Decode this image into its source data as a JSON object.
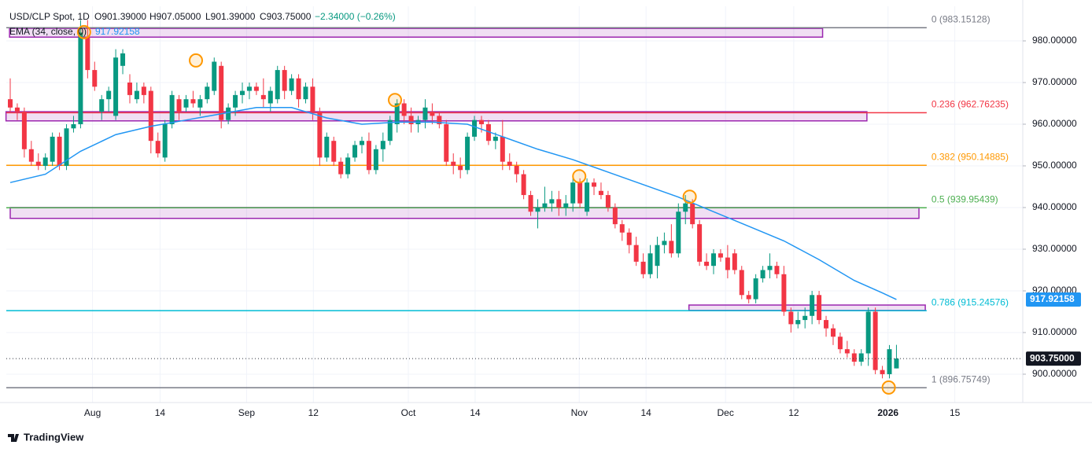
{
  "header": {
    "open": "O901.39000",
    "high": "H907.05000",
    "low": "L901.39000",
    "close": "C903.75000",
    "change": "−2.34000 (−0.26%)"
  },
  "chart_data": {
    "type": "candlestick",
    "title": "USD/CLP Spot, 1D",
    "up_color": "#089981",
    "down_color": "#f23645",
    "open": [
      966,
      964,
      963,
      954,
      951,
      950,
      951,
      957,
      950,
      959,
      960,
      981,
      973,
      963,
      966,
      962,
      974,
      970,
      966,
      969,
      968,
      956,
      952,
      960,
      966,
      964,
      966,
      964,
      966,
      968,
      974,
      961,
      964,
      967,
      968,
      969,
      967,
      965,
      966,
      973,
      968,
      971,
      966,
      969,
      963,
      952,
      956,
      951,
      948,
      952,
      955,
      956,
      949,
      954,
      956,
      960,
      965,
      962,
      960,
      961,
      963,
      962,
      960,
      951,
      950,
      949,
      957,
      961,
      960,
      956,
      957,
      951,
      950,
      948,
      943,
      939,
      940,
      941,
      942,
      940,
      941,
      946,
      939,
      946,
      944,
      943,
      940,
      936,
      934,
      931,
      927,
      924,
      926,
      931,
      932,
      929,
      939,
      941,
      936,
      927,
      926,
      929,
      928,
      929,
      925,
      919,
      918,
      923,
      925,
      926,
      924,
      915,
      912,
      913,
      914,
      919,
      913,
      911,
      909,
      906,
      905,
      903,
      905,
      915,
      901,
      900,
      901.39
    ],
    "high": [
      971,
      965,
      964,
      956,
      953,
      953,
      958,
      958,
      960,
      962,
      985,
      985,
      975,
      967,
      969,
      978,
      978,
      972,
      970,
      970,
      969,
      958,
      961,
      968,
      967,
      967,
      968,
      967,
      970,
      976,
      975,
      965,
      968,
      970,
      970,
      970,
      971,
      969,
      974,
      974,
      972,
      972,
      970,
      971,
      964,
      958,
      957,
      952,
      953,
      956,
      957,
      958,
      955,
      958,
      962,
      966,
      966,
      964,
      962,
      966,
      965,
      963,
      961,
      953,
      952,
      958,
      962,
      962,
      961,
      958,
      961,
      953,
      951,
      949,
      944,
      942,
      945,
      944,
      944,
      943,
      948,
      947,
      947,
      947,
      946,
      944,
      941,
      937,
      935,
      933,
      929,
      931,
      933,
      934,
      936,
      941,
      943,
      942,
      937,
      929,
      930,
      930,
      931,
      930,
      926,
      920,
      924,
      926,
      929,
      927,
      926,
      916,
      915,
      916,
      920,
      920,
      914,
      912,
      910,
      908,
      906,
      906,
      916,
      916,
      902,
      907,
      907.05
    ],
    "low": [
      963,
      961,
      952,
      950,
      949,
      949,
      950,
      949,
      949,
      958,
      959,
      971,
      968,
      961,
      963,
      961,
      972,
      965,
      965,
      965,
      953,
      952,
      951,
      959,
      961,
      963,
      964,
      962,
      965,
      967,
      959,
      960,
      962,
      965,
      966,
      967,
      964,
      963,
      965,
      966,
      967,
      964,
      965,
      961,
      950,
      951,
      950,
      947,
      947,
      951,
      953,
      948,
      948,
      951,
      955,
      958,
      960,
      958,
      958,
      959,
      960,
      959,
      950,
      948,
      947,
      948,
      956,
      958,
      955,
      954,
      949,
      949,
      946,
      942,
      938,
      935,
      939,
      939,
      938,
      938,
      939,
      940,
      938,
      943,
      942,
      939,
      935,
      932,
      929,
      926,
      923,
      923,
      923,
      929,
      928,
      928,
      936,
      935,
      926,
      925,
      924,
      927,
      923,
      924,
      918,
      917,
      917,
      922,
      923,
      923,
      914,
      910,
      911,
      911,
      912,
      912,
      909,
      907,
      905,
      904,
      902,
      902,
      902,
      900,
      899,
      899,
      901.39
    ],
    "close": [
      964,
      963,
      954,
      951,
      950,
      952,
      957,
      950,
      959,
      960,
      982,
      973,
      969,
      966,
      968,
      976,
      977,
      967,
      968,
      967,
      956,
      953,
      960,
      967,
      963,
      966,
      965,
      966,
      969,
      975,
      961,
      964,
      967,
      968,
      969,
      968,
      966,
      968,
      973,
      968,
      971,
      966,
      969,
      963,
      952,
      957,
      951,
      948,
      952,
      955,
      956,
      949,
      954,
      956,
      961,
      965,
      962,
      960,
      961,
      964,
      962,
      960,
      951,
      950,
      949,
      957,
      961,
      960,
      956,
      957,
      951,
      950,
      948,
      943,
      939,
      940,
      941,
      942,
      940,
      941,
      946,
      941,
      946,
      945,
      943,
      940,
      936,
      934,
      931,
      927,
      924,
      929,
      931,
      932,
      929,
      939,
      941,
      936,
      927,
      926,
      929,
      928,
      925,
      925,
      919,
      918,
      923,
      925,
      926,
      924,
      915,
      912,
      913,
      914,
      919,
      913,
      911,
      909,
      906,
      905,
      903,
      905,
      915,
      901,
      900,
      906,
      903.75
    ],
    "ema": {
      "name": "EMA (34, close, 0)",
      "color": "#2196f3",
      "value_label": "917.92158",
      "x": [
        0,
        5,
        10,
        15,
        20,
        25,
        30,
        35,
        40,
        45,
        50,
        55,
        60,
        65,
        70,
        75,
        80,
        85,
        90,
        95,
        100,
        105,
        110,
        115,
        120,
        124,
        126
      ],
      "values": [
        946,
        948,
        953.5,
        957.5,
        959.5,
        961,
        962.5,
        964,
        964,
        961.5,
        960,
        960.5,
        960.5,
        960,
        957,
        954,
        951.5,
        948.5,
        945.5,
        942.5,
        939,
        935.5,
        932,
        927.5,
        922.5,
        919.5,
        917.92158
      ]
    },
    "last_price": {
      "value": 903.75,
      "label": "903.75000"
    },
    "fib_levels": [
      {
        "label": "0 (983.15128)",
        "value": 983.15128,
        "color": "#787b86"
      },
      {
        "label": "0.236 (962.76235)",
        "value": 962.76235,
        "color": "#f23645"
      },
      {
        "label": "0.382 (950.14885)",
        "value": 950.14885,
        "color": "#ff9800"
      },
      {
        "label": "0.5 (939.95439)",
        "value": 939.95439,
        "color": "#4caf50"
      },
      {
        "label": "0.786 (915.24576)",
        "value": 915.24576,
        "color": "#00bcd4"
      },
      {
        "label": "1 (896.75749)",
        "value": 896.75749,
        "color": "#787b86"
      }
    ],
    "fib_end": 130.3,
    "zones": [
      {
        "low": 980.9,
        "high": 983.0,
        "from": -0.1,
        "to": 115.5
      },
      {
        "low": 960.8,
        "high": 963.0,
        "from": -0.6,
        "to": 121.8
      },
      {
        "low": 937.4,
        "high": 940.0,
        "from": 0,
        "to": 129.2
      },
      {
        "low": 915.3,
        "high": 916.6,
        "from": 96.5,
        "to": 130.1
      }
    ],
    "markers": [
      {
        "x": 10.5,
        "value": 982.1
      },
      {
        "x": 26.4,
        "value": 975.3
      },
      {
        "x": 54.7,
        "value": 965.8
      },
      {
        "x": 80.9,
        "value": 947.5
      },
      {
        "x": 96.6,
        "value": 942.6
      },
      {
        "x": 124.9,
        "value": 896.8
      }
    ],
    "xlim": [
      -0.56,
      143.96
    ],
    "xticks": [
      {
        "value": 11.7,
        "label": "Aug"
      },
      {
        "value": 21.3,
        "label": "14"
      },
      {
        "value": 33.6,
        "label": "Sep"
      },
      {
        "value": 43.1,
        "label": "12"
      },
      {
        "value": 56.6,
        "label": "Oct"
      },
      {
        "value": 66.1,
        "label": "14"
      },
      {
        "value": 80.9,
        "label": "Nov"
      },
      {
        "value": 90.4,
        "label": "14"
      },
      {
        "value": 101.7,
        "label": "Dec"
      },
      {
        "value": 111.4,
        "label": "12"
      },
      {
        "value": 124.8,
        "label": "2026"
      },
      {
        "value": 134.3,
        "label": "15"
      }
    ],
    "ylim": [
      893.2,
      988.3
    ],
    "yticks": [
      {
        "value": 900,
        "label": "900.00000"
      },
      {
        "value": 910,
        "label": "910.00000"
      },
      {
        "value": 920,
        "label": "920.00000"
      },
      {
        "value": 930,
        "label": "930.00000"
      },
      {
        "value": 940,
        "label": "940.00000"
      },
      {
        "value": 950,
        "label": "950.00000"
      },
      {
        "value": 960,
        "label": "960.00000"
      },
      {
        "value": 970,
        "label": "970.00000"
      },
      {
        "value": 980,
        "label": "980.00000"
      }
    ]
  },
  "footer": {
    "brand": "TradingView"
  }
}
